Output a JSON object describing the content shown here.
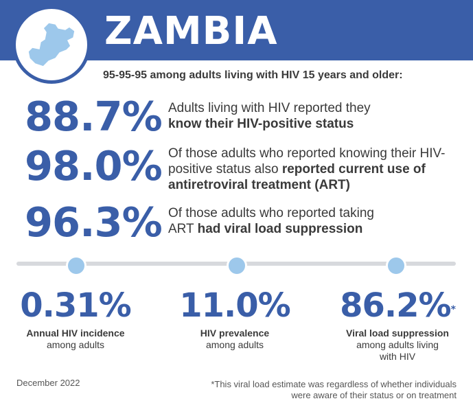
{
  "header": {
    "title": "ZAMBIA",
    "map_icon": "zambia-map-icon",
    "bg_color": "#3a5ea8"
  },
  "subtitle": "95-95-95 among adults living with HIV 15 years and older:",
  "stats": [
    {
      "value": "88.7%",
      "text": "Adults living with HIV reported they ",
      "bold": "know their HIV-positive status",
      "tail": ""
    },
    {
      "value": "98.0%",
      "text": "Of those adults who reported knowing their HIV-positive status also ",
      "bold": "reported current use of antiretroviral treatment (ART)",
      "tail": ""
    },
    {
      "value": "96.3%",
      "text": "Of those adults who reported taking ART ",
      "bold": "had viral load suppression",
      "tail": ""
    }
  ],
  "kpis": [
    {
      "value": "0.31%",
      "marker": "",
      "label_bold": "Annual HIV incidence",
      "label_rest": "among adults"
    },
    {
      "value": "11.0%",
      "marker": "",
      "label_bold": "HIV prevalence",
      "label_rest": "among adults"
    },
    {
      "value": "86.2%",
      "marker": "*",
      "label_bold": "Viral load suppression",
      "label_rest": "among adults living with HIV"
    }
  ],
  "footer": {
    "date": "December 2022",
    "footnote": "*This viral load estimate was regardless of whether individuals were aware of their status or on treatment"
  },
  "colors": {
    "accent": "#3a5ea8",
    "dot": "#9dc8eb",
    "divider": "#d7d9dd",
    "text": "#3a3a3a"
  }
}
